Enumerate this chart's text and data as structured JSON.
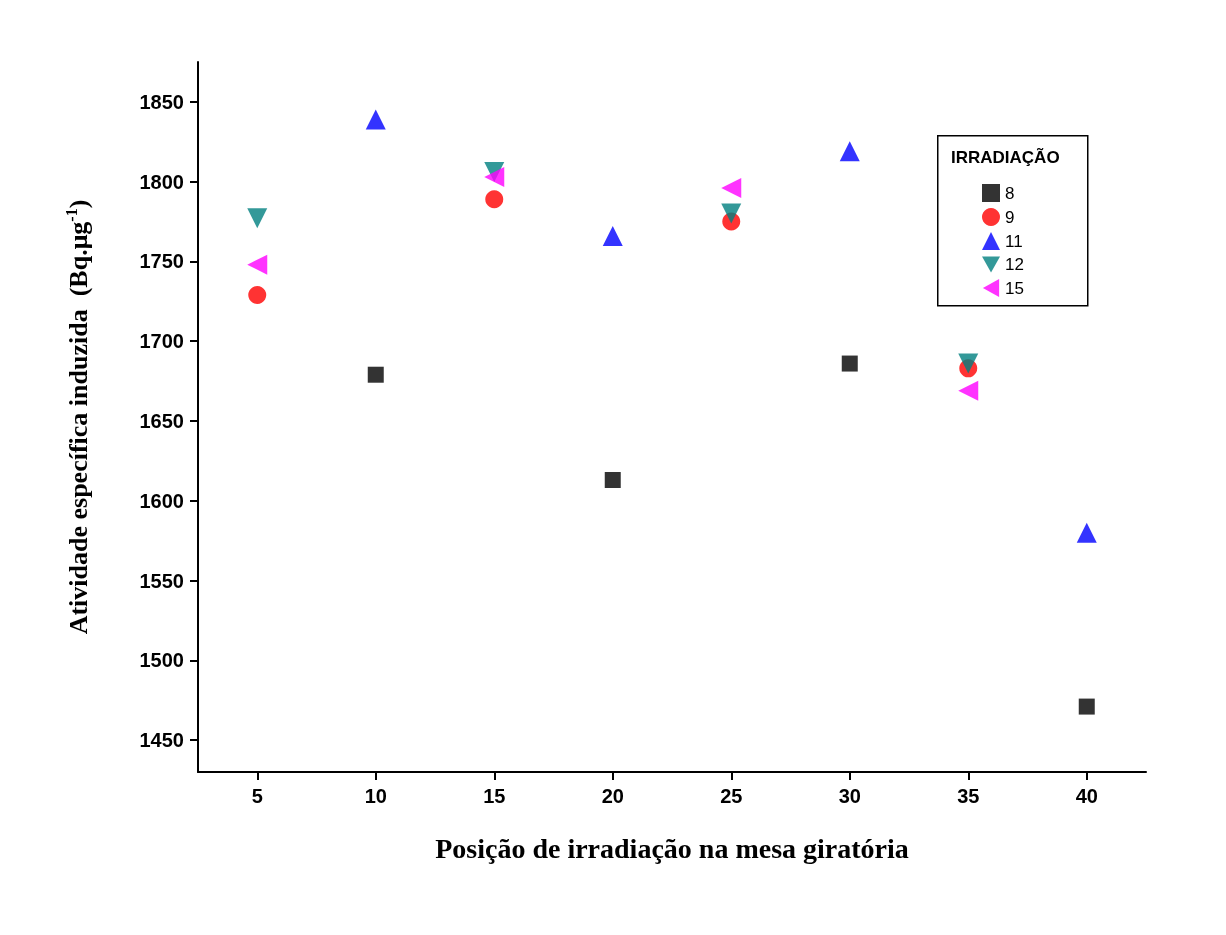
{
  "chart_data": {
    "type": "scatter",
    "xlabel": "Posição de irradiação na mesa giratória",
    "ylabel": "Atividade específica induzida  (Bq.μg$^{-1}$)",
    "legend_title": "IRRADIAÇÃO",
    "xlim": [
      2.5,
      42.5
    ],
    "xticks": [
      5,
      10,
      15,
      20,
      25,
      30,
      35,
      40
    ],
    "ylim": [
      1430,
      1875
    ],
    "yticks": [
      1450,
      1500,
      1550,
      1600,
      1650,
      1700,
      1750,
      1800,
      1850
    ],
    "grid": false,
    "legend": "top right",
    "series": [
      {
        "name": "8",
        "color": "#000000",
        "marker": "square",
        "x": [
          10,
          20,
          30,
          40
        ],
        "values": [
          1679,
          1613,
          1686,
          1471
        ]
      },
      {
        "name": "9",
        "color": "#ff0000",
        "marker": "circle",
        "x": [
          5,
          15,
          25,
          35
        ],
        "values": [
          1729,
          1789,
          1775,
          1683
        ]
      },
      {
        "name": "11",
        "color": "#0000ff",
        "marker": "triangle",
        "x": [
          10,
          20,
          30,
          40
        ],
        "values": [
          1839,
          1766,
          1819,
          1580
        ]
      },
      {
        "name": "12",
        "color": "#008080",
        "marker": "triangle-down",
        "x": [
          5,
          15,
          25,
          35
        ],
        "values": [
          1777,
          1806,
          1780,
          1686
        ]
      },
      {
        "name": "15",
        "color": "#ff00ff",
        "marker": "triangle-left",
        "x": [
          5,
          15,
          25,
          35
        ],
        "values": [
          1748,
          1803,
          1796,
          1669
        ]
      }
    ]
  }
}
